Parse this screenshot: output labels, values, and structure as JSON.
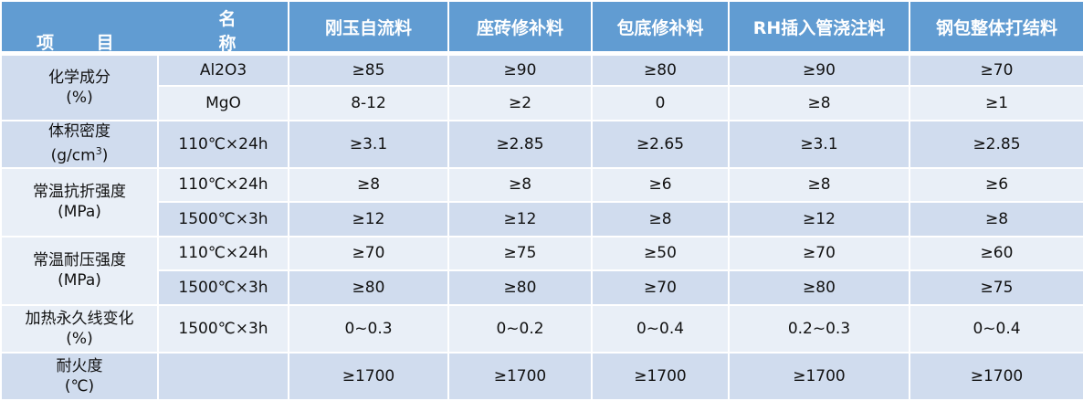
{
  "header": {
    "name_label": "名 称",
    "item_label": "项 目",
    "products": [
      "刚玉自流料",
      "座砖修补料",
      "包底修补料",
      "RH插入管浇注料",
      "钢包整体打结料"
    ]
  },
  "rows": [
    {
      "group": "化学成分",
      "unit": "(%)",
      "sub": "Al2O3",
      "values": [
        "≥85",
        "≥90",
        "≥80",
        "≥90",
        "≥70"
      ]
    },
    {
      "sub": "MgO",
      "values": [
        "8-12",
        "≥2",
        "0",
        "≥8",
        "≥1"
      ]
    },
    {
      "group": "体积密度",
      "unit": "(g/cm3)",
      "sub": "110℃×24h",
      "values": [
        "≥3.1",
        "≥2.85",
        "≥2.65",
        "≥3.1",
        "≥2.85"
      ]
    },
    {
      "group": "常温抗折强度",
      "unit": "(MPa)",
      "sub": "110℃×24h",
      "values": [
        "≥8",
        "≥8",
        "≥6",
        "≥8",
        "≥6"
      ]
    },
    {
      "sub": "1500℃×3h",
      "values": [
        "≥12",
        "≥12",
        "≥8",
        "≥12",
        "≥8"
      ]
    },
    {
      "group": "常温耐压强度",
      "unit": "(MPa)",
      "sub": "110℃×24h",
      "values": [
        "≥70",
        "≥75",
        "≥50",
        "≥70",
        "≥60"
      ]
    },
    {
      "sub": "1500℃×3h",
      "values": [
        "≥80",
        "≥80",
        "≥70",
        "≥80",
        "≥75"
      ]
    },
    {
      "group": "加热永久线变化",
      "unit": "(%)",
      "sub": "1500℃×3h",
      "values": [
        "0~0.3",
        "0~0.2",
        "0~0.4",
        "0.2~0.3",
        "0~0.4"
      ]
    },
    {
      "group": "耐火度",
      "unit": "(℃)",
      "sub": "",
      "values": [
        "≥1700",
        "≥1700",
        "≥1700",
        "≥1700",
        "≥1700"
      ]
    }
  ],
  "colors": {
    "header": "#619cd2",
    "row_dark": "#d0dcee",
    "row_light": "#e9eff7"
  }
}
